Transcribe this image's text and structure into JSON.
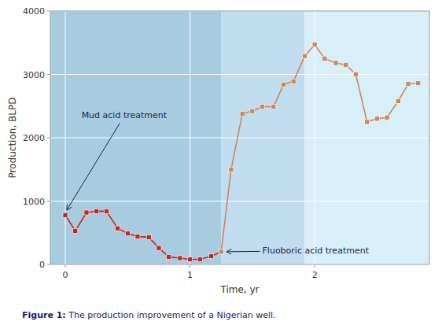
{
  "chart_data": {
    "type": "line",
    "xlabel": "Time, yr",
    "ylabel": "Production, BLPD",
    "xlim": [
      -0.12,
      2.92
    ],
    "ylim": [
      0,
      4000
    ],
    "xticks": [
      0,
      1,
      2
    ],
    "yticks": [
      0,
      1000,
      2000,
      3000,
      4000
    ],
    "grid": true,
    "x": [
      0.0,
      0.08,
      0.17,
      0.25,
      0.33,
      0.42,
      0.5,
      0.58,
      0.67,
      0.75,
      0.83,
      0.92,
      1.0,
      1.08,
      1.17,
      1.25,
      1.33,
      1.42,
      1.5,
      1.58,
      1.67,
      1.75,
      1.83,
      1.92,
      2.0,
      2.08,
      2.17,
      2.25,
      2.33,
      2.42,
      2.5,
      2.58,
      2.67,
      2.75,
      2.83
    ],
    "series": [
      {
        "color": "#cc2222",
        "marker": "square",
        "values": [
          780,
          530,
          820,
          840,
          840,
          570,
          490,
          440,
          430,
          260,
          120,
          100,
          80,
          80,
          130,
          200,
          null,
          null,
          null,
          null,
          null,
          null,
          null,
          null,
          null,
          null,
          null,
          null,
          null,
          null,
          null,
          null,
          null,
          null,
          null
        ]
      },
      {
        "color": "#cc8855",
        "marker": "square",
        "values": [
          null,
          null,
          null,
          null,
          null,
          null,
          null,
          null,
          null,
          null,
          null,
          null,
          null,
          null,
          null,
          200,
          1500,
          2380,
          2420,
          2490,
          2490,
          2840,
          2890,
          3290,
          3470,
          3250,
          3180,
          3150,
          3000,
          2250,
          2300,
          2320,
          2580,
          2850,
          2860
        ]
      }
    ],
    "regions": [
      {
        "x0": -0.12,
        "x1": 1.25,
        "color": "#a8ccdf"
      },
      {
        "x0": 1.25,
        "x1": 1.92,
        "color": "#c0dcee"
      },
      {
        "x0": 1.92,
        "x1": 2.92,
        "color": "#d8eef8"
      }
    ],
    "annotations": [
      {
        "text": "Mud acid treatment",
        "x": 0.0,
        "y": 820,
        "text_x": 0.13,
        "text_y": 2350
      },
      {
        "text": "Fluoboric acid treatment",
        "x": 1.27,
        "y": 200,
        "text_x": 1.58,
        "text_y": 215
      }
    ],
    "caption_bold": "Figure 1:",
    "caption": " The production improvement of a Nigerian well."
  }
}
